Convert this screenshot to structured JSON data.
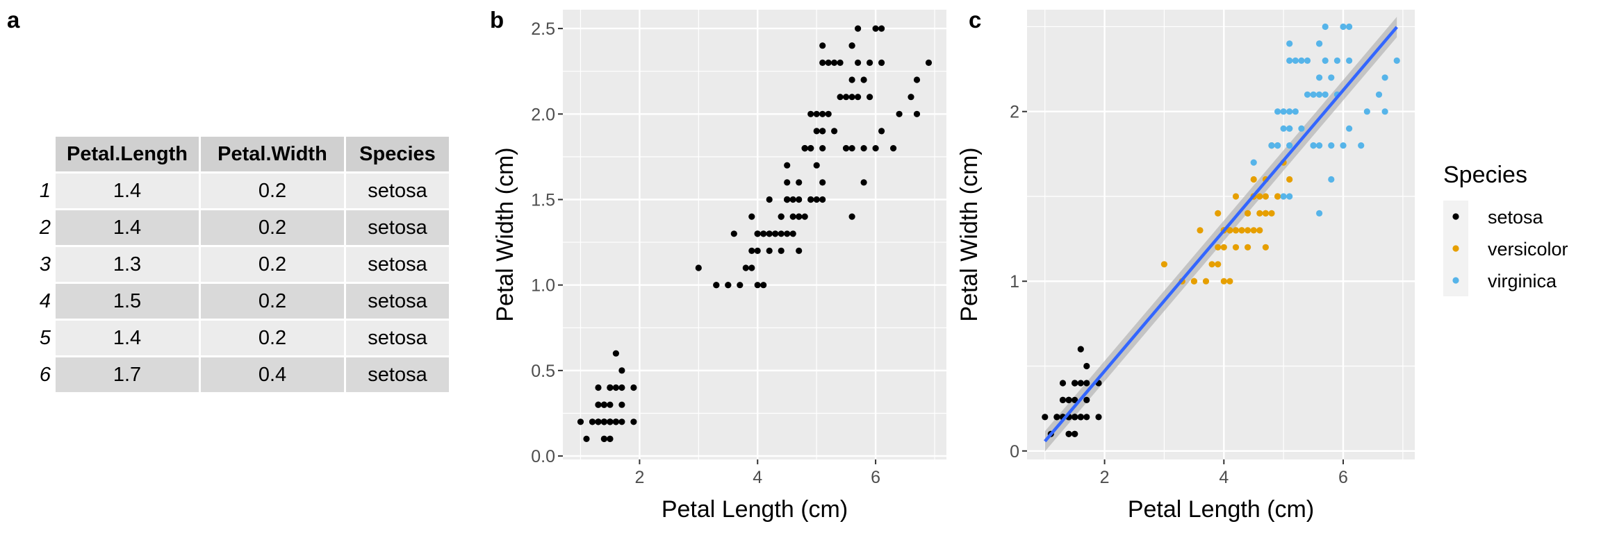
{
  "panels": {
    "a": "a",
    "b": "b",
    "c": "c"
  },
  "table": {
    "headers": [
      "Petal.Length",
      "Petal.Width",
      "Species"
    ],
    "rows": [
      {
        "name": "1",
        "len": "1.4",
        "wid": "0.2",
        "species": "setosa"
      },
      {
        "name": "2",
        "len": "1.4",
        "wid": "0.2",
        "species": "setosa"
      },
      {
        "name": "3",
        "len": "1.3",
        "wid": "0.2",
        "species": "setosa"
      },
      {
        "name": "4",
        "len": "1.5",
        "wid": "0.2",
        "species": "setosa"
      },
      {
        "name": "5",
        "len": "1.4",
        "wid": "0.2",
        "species": "setosa"
      },
      {
        "name": "6",
        "len": "1.7",
        "wid": "0.4",
        "species": "setosa"
      }
    ]
  },
  "chart_data": [
    {
      "type": "scatter",
      "panel": "b",
      "xlabel": "Petal Length (cm)",
      "ylabel": "Petal Width (cm)",
      "xlim": [
        0.7,
        7.2
      ],
      "ylim": [
        -0.02,
        2.61
      ],
      "xticks": [
        2,
        4,
        6
      ],
      "xtick_labels": [
        "2",
        "4",
        "6"
      ],
      "yticks": [
        0,
        0.5,
        1,
        1.5,
        2,
        2.5
      ],
      "ytick_labels": [
        "0.0",
        "0.5",
        "1.0",
        "1.5",
        "2.0",
        "2.5"
      ],
      "grid": true,
      "point_color": "#000000",
      "series": [
        {
          "x": [
            1.4,
            1.4,
            1.3,
            1.5,
            1.4,
            1.7,
            1.4,
            1.5,
            1.4,
            1.5,
            1.5,
            1.6,
            1.4,
            1.1,
            1.2,
            1.5,
            1.3,
            1.4,
            1.7,
            1.5,
            1.7,
            1.5,
            1.0,
            1.7,
            1.9,
            1.6,
            1.6,
            1.5,
            1.4,
            1.6,
            1.6,
            1.5,
            1.5,
            1.4,
            1.5,
            1.2,
            1.3,
            1.4,
            1.3,
            1.5,
            1.3,
            1.3,
            1.3,
            1.6,
            1.9,
            1.4,
            1.6,
            1.4,
            1.5,
            1.4,
            4.7,
            4.5,
            4.9,
            4.0,
            4.6,
            4.5,
            4.7,
            3.3,
            4.6,
            3.9,
            3.5,
            4.2,
            4.0,
            4.7,
            3.6,
            4.4,
            4.5,
            4.1,
            4.5,
            3.9,
            4.8,
            4.0,
            4.9,
            4.7,
            4.3,
            4.4,
            4.8,
            5.0,
            4.5,
            3.5,
            3.8,
            3.7,
            3.9,
            5.1,
            4.5,
            4.5,
            4.7,
            4.4,
            4.1,
            4.0,
            4.4,
            4.6,
            4.0,
            3.3,
            4.2,
            4.2,
            4.2,
            4.3,
            3.0,
            4.1,
            6.0,
            5.1,
            5.9,
            5.6,
            5.8,
            6.6,
            4.5,
            6.3,
            5.8,
            6.1,
            5.1,
            5.3,
            5.5,
            5.0,
            5.1,
            5.3,
            5.5,
            6.7,
            6.9,
            5.0,
            5.7,
            4.9,
            6.7,
            4.9,
            5.7,
            6.0,
            4.8,
            4.9,
            5.6,
            5.8,
            6.1,
            6.4,
            5.6,
            5.1,
            5.6,
            6.1,
            5.6,
            5.5,
            4.8,
            5.4,
            5.6,
            5.1,
            5.1,
            5.9,
            5.7,
            5.2,
            5.0,
            5.2,
            5.4,
            5.1
          ],
          "y": [
            0.2,
            0.2,
            0.2,
            0.2,
            0.2,
            0.4,
            0.3,
            0.2,
            0.2,
            0.1,
            0.2,
            0.2,
            0.1,
            0.1,
            0.2,
            0.4,
            0.4,
            0.3,
            0.3,
            0.3,
            0.2,
            0.4,
            0.2,
            0.5,
            0.2,
            0.2,
            0.4,
            0.2,
            0.2,
            0.2,
            0.2,
            0.4,
            0.1,
            0.2,
            0.2,
            0.2,
            0.2,
            0.1,
            0.2,
            0.2,
            0.3,
            0.3,
            0.2,
            0.6,
            0.4,
            0.3,
            0.2,
            0.2,
            0.2,
            0.2,
            1.4,
            1.5,
            1.5,
            1.3,
            1.5,
            1.3,
            1.6,
            1.0,
            1.3,
            1.4,
            1.0,
            1.5,
            1.0,
            1.4,
            1.3,
            1.4,
            1.5,
            1.0,
            1.5,
            1.1,
            1.8,
            1.3,
            1.5,
            1.2,
            1.3,
            1.4,
            1.4,
            1.7,
            1.5,
            1.0,
            1.1,
            1.0,
            1.2,
            1.6,
            1.5,
            1.6,
            1.5,
            1.3,
            1.3,
            1.3,
            1.2,
            1.4,
            1.2,
            1.0,
            1.3,
            1.2,
            1.3,
            1.3,
            1.1,
            1.3,
            2.5,
            1.9,
            2.1,
            1.8,
            2.2,
            2.1,
            1.7,
            1.8,
            1.8,
            2.5,
            2.0,
            1.9,
            2.1,
            2.0,
            2.4,
            2.3,
            1.8,
            2.2,
            2.3,
            1.5,
            2.3,
            2.0,
            2.0,
            1.8,
            2.1,
            1.8,
            1.8,
            1.8,
            2.1,
            1.6,
            1.9,
            2.0,
            2.2,
            1.5,
            1.4,
            2.3,
            2.4,
            1.8,
            1.8,
            2.1,
            2.4,
            2.3,
            1.9,
            2.3,
            2.5,
            2.3,
            1.9,
            2.0,
            2.3,
            1.8
          ]
        }
      ]
    },
    {
      "type": "scatter",
      "panel": "c",
      "xlabel": "Petal Length (cm)",
      "ylabel": "Petal Width (cm)",
      "xlim": [
        0.7,
        7.2
      ],
      "ylim": [
        -0.05,
        2.6
      ],
      "xticks": [
        2,
        4,
        6
      ],
      "xtick_labels": [
        "2",
        "4",
        "6"
      ],
      "yticks": [
        0,
        1,
        2
      ],
      "ytick_labels": [
        "0",
        "1",
        "2"
      ],
      "grid": true,
      "legend": {
        "title": "Species",
        "position": "right"
      },
      "fit_line": {
        "method": "lm",
        "x": [
          1.0,
          6.9
        ],
        "y": [
          0.057,
          2.498
        ],
        "color": "#3366ff",
        "ribbon_color": "#b3b3b3"
      },
      "series": [
        {
          "name": "setosa",
          "color": "#000000",
          "x": [
            1.4,
            1.4,
            1.3,
            1.5,
            1.4,
            1.7,
            1.4,
            1.5,
            1.4,
            1.5,
            1.5,
            1.6,
            1.4,
            1.1,
            1.2,
            1.5,
            1.3,
            1.4,
            1.7,
            1.5,
            1.7,
            1.5,
            1.0,
            1.7,
            1.9,
            1.6,
            1.6,
            1.5,
            1.4,
            1.6,
            1.6,
            1.5,
            1.5,
            1.4,
            1.5,
            1.2,
            1.3,
            1.4,
            1.3,
            1.5,
            1.3,
            1.3,
            1.3,
            1.6,
            1.9,
            1.4,
            1.6,
            1.4,
            1.5,
            1.4
          ],
          "y": [
            0.2,
            0.2,
            0.2,
            0.2,
            0.2,
            0.4,
            0.3,
            0.2,
            0.2,
            0.1,
            0.2,
            0.2,
            0.1,
            0.1,
            0.2,
            0.4,
            0.4,
            0.3,
            0.3,
            0.3,
            0.2,
            0.4,
            0.2,
            0.5,
            0.2,
            0.2,
            0.4,
            0.2,
            0.2,
            0.2,
            0.2,
            0.4,
            0.1,
            0.2,
            0.2,
            0.2,
            0.2,
            0.1,
            0.2,
            0.2,
            0.3,
            0.3,
            0.2,
            0.6,
            0.4,
            0.3,
            0.2,
            0.2,
            0.2,
            0.2
          ]
        },
        {
          "name": "versicolor",
          "color": "#e69f00",
          "x": [
            4.7,
            4.5,
            4.9,
            4.0,
            4.6,
            4.5,
            4.7,
            3.3,
            4.6,
            3.9,
            3.5,
            4.2,
            4.0,
            4.7,
            3.6,
            4.4,
            4.5,
            4.1,
            4.5,
            3.9,
            4.8,
            4.0,
            4.9,
            4.7,
            4.3,
            4.4,
            4.8,
            5.0,
            4.5,
            3.5,
            3.8,
            3.7,
            3.9,
            5.1,
            4.5,
            4.5,
            4.7,
            4.4,
            4.1,
            4.0,
            4.4,
            4.6,
            4.0,
            3.3,
            4.2,
            4.2,
            4.2,
            4.3,
            3.0,
            4.1
          ],
          "y": [
            1.4,
            1.5,
            1.5,
            1.3,
            1.5,
            1.3,
            1.6,
            1.0,
            1.3,
            1.4,
            1.0,
            1.5,
            1.0,
            1.4,
            1.3,
            1.4,
            1.5,
            1.0,
            1.5,
            1.1,
            1.8,
            1.3,
            1.5,
            1.2,
            1.3,
            1.4,
            1.4,
            1.7,
            1.5,
            1.0,
            1.1,
            1.0,
            1.2,
            1.6,
            1.5,
            1.6,
            1.5,
            1.3,
            1.3,
            1.3,
            1.2,
            1.4,
            1.2,
            1.0,
            1.3,
            1.2,
            1.3,
            1.3,
            1.1,
            1.3
          ]
        },
        {
          "name": "virginica",
          "color": "#56b4e9",
          "x": [
            6.0,
            5.1,
            5.9,
            5.6,
            5.8,
            6.6,
            4.5,
            6.3,
            5.8,
            6.1,
            5.1,
            5.3,
            5.5,
            5.0,
            5.1,
            5.3,
            5.5,
            6.7,
            6.9,
            5.0,
            5.7,
            4.9,
            6.7,
            4.9,
            5.7,
            6.0,
            4.8,
            4.9,
            5.6,
            5.8,
            6.1,
            6.4,
            5.6,
            5.1,
            5.6,
            6.1,
            5.6,
            5.5,
            4.8,
            5.4,
            5.6,
            5.1,
            5.1,
            5.9,
            5.7,
            5.2,
            5.0,
            5.2,
            5.4,
            5.1
          ],
          "y": [
            2.5,
            1.9,
            2.1,
            1.8,
            2.2,
            2.1,
            1.7,
            1.8,
            1.8,
            2.5,
            2.0,
            1.9,
            2.1,
            2.0,
            2.4,
            2.3,
            1.8,
            2.2,
            2.3,
            1.5,
            2.3,
            2.0,
            2.0,
            1.8,
            2.1,
            1.8,
            1.8,
            1.8,
            2.1,
            1.6,
            1.9,
            2.0,
            2.2,
            1.5,
            1.4,
            2.3,
            2.4,
            1.8,
            1.8,
            2.1,
            2.4,
            2.3,
            1.9,
            2.3,
            2.5,
            2.3,
            1.9,
            2.0,
            2.3,
            1.8
          ]
        }
      ]
    }
  ]
}
